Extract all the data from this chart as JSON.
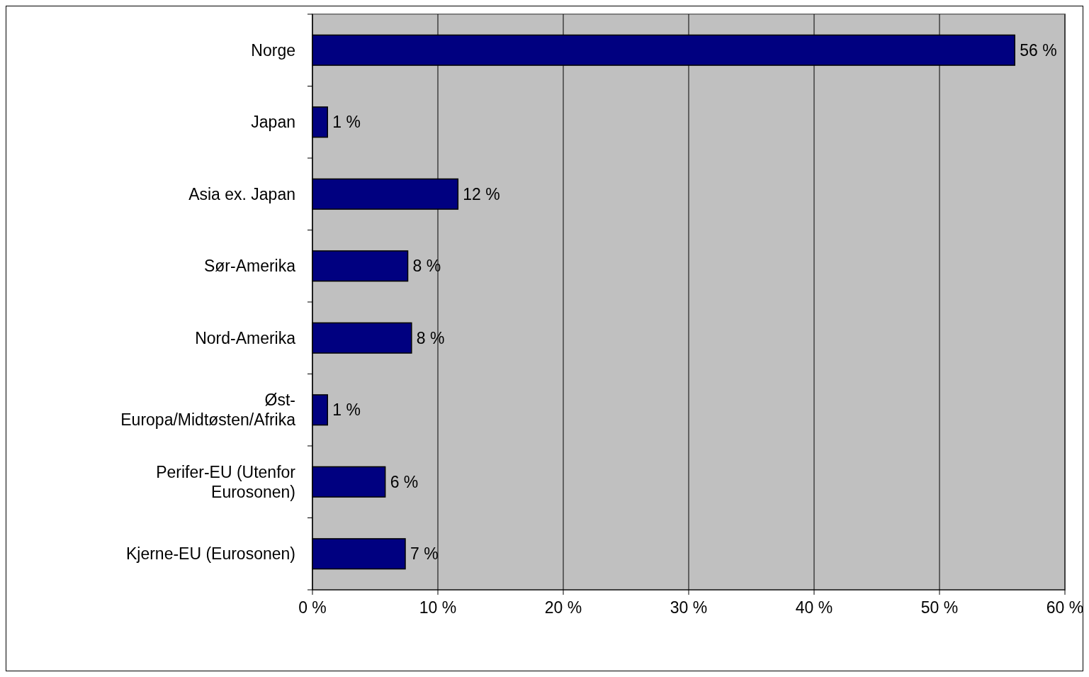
{
  "chart_data": {
    "type": "bar",
    "orientation": "horizontal",
    "categories": [
      "Norge",
      "Japan",
      "Asia ex. Japan",
      "Sør-Amerika",
      "Nord-Amerika",
      "Øst-Europa/Midtøsten/Afrika",
      "Perifer-EU (Utenfor Eurosonen)",
      "Kjerne-EU (Eurosonen)"
    ],
    "values": [
      56,
      1.2,
      11.6,
      7.6,
      7.9,
      1.2,
      5.8,
      7.4
    ],
    "value_labels": [
      "56 %",
      "1 %",
      "12 %",
      "8 %",
      "8 %",
      "1 %",
      "6 %",
      "7 %"
    ],
    "color": "#000080",
    "xlim": [
      0,
      60
    ],
    "xticks": [
      {
        "value": 0,
        "label": "0 %"
      },
      {
        "value": 10,
        "label": "10 %"
      },
      {
        "value": 20,
        "label": "20 %"
      },
      {
        "value": 30,
        "label": "30 %"
      },
      {
        "value": 40,
        "label": "40 %"
      },
      {
        "value": 50,
        "label": "50 %"
      },
      {
        "value": 60,
        "label": "60 %"
      }
    ],
    "grid": "x"
  }
}
